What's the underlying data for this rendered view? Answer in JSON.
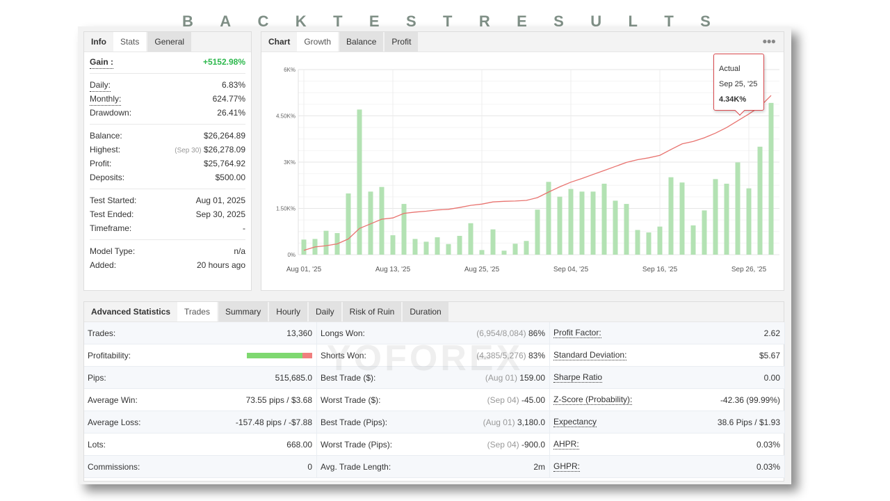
{
  "page_title_letters": [
    "B",
    "A",
    "C",
    "K",
    "T",
    "E",
    "S",
    "T",
    "R",
    "E",
    "S",
    "U",
    "L",
    "T",
    "S"
  ],
  "watermark": "YOFOREX",
  "left_panel": {
    "tabs": [
      "Info",
      "Stats",
      "General"
    ],
    "gain": {
      "label": "Gain :",
      "value": "+5152.98%"
    },
    "groups": [
      [
        {
          "label": "Daily:",
          "value": "6.83%",
          "dotted": true
        },
        {
          "label": "Monthly:",
          "value": "624.77%",
          "dotted": true
        },
        {
          "label": "Drawdown:",
          "value": "26.41%"
        }
      ],
      [
        {
          "label": "Balance:",
          "value": "$26,264.89"
        },
        {
          "label": "Highest:",
          "note": "(Sep 30)",
          "value": "$26,278.09"
        },
        {
          "label": "Profit:",
          "value": "$25,764.92",
          "green": true
        },
        {
          "label": "Deposits:",
          "value": "$500.00"
        }
      ],
      [
        {
          "label": "Test Started:",
          "value": "Aug 01, 2025"
        },
        {
          "label": "Test Ended:",
          "value": "Sep 30, 2025"
        },
        {
          "label": "Timeframe:",
          "value": "-"
        }
      ],
      [
        {
          "label": "Model Type:",
          "value": "n/a"
        },
        {
          "label": "Added:",
          "value": "20 hours ago"
        }
      ]
    ]
  },
  "chart_panel": {
    "tabs": [
      "Chart",
      "Growth",
      "Balance",
      "Profit"
    ],
    "more_icon": "ellipsis-icon",
    "tooltip": {
      "series": "Actual",
      "date": "Sep 25, '25",
      "value": "4.34K%"
    }
  },
  "chart_data": {
    "type": "bar",
    "ylim": [
      0,
      6000
    ],
    "ytick_labels": [
      "0%",
      "1.50K%",
      "3K%",
      "4.50K%",
      "6K%"
    ],
    "ytick_values": [
      0,
      1500,
      3000,
      4500,
      6000
    ],
    "xticks": [
      {
        "label": "Aug 01, '25",
        "index": 0
      },
      {
        "label": "Aug 13, '25",
        "index": 8
      },
      {
        "label": "Aug 25, '25",
        "index": 16
      },
      {
        "label": "Sep 04, '25",
        "index": 24
      },
      {
        "label": "Sep 16, '25",
        "index": 32
      },
      {
        "label": "Sep 26, '25",
        "index": 40
      }
    ],
    "grid": true,
    "bar_color": "#b3e2b3",
    "line_color": "#e8736f",
    "bars": [
      490,
      510,
      775,
      700,
      1985,
      4705,
      2045,
      2195,
      630,
      1645,
      510,
      420,
      565,
      345,
      610,
      1020,
      150,
      820,
      130,
      355,
      445,
      1460,
      2360,
      1880,
      2130,
      2045,
      2045,
      2300,
      1750,
      1645,
      800,
      720,
      910,
      2510,
      2340,
      950,
      1435,
      2450,
      2300,
      2990,
      2150,
      3500,
      4920
    ],
    "line": [
      140,
      250,
      290,
      350,
      510,
      850,
      1000,
      1150,
      1190,
      1340,
      1380,
      1410,
      1450,
      1470,
      1530,
      1600,
      1640,
      1710,
      1730,
      1740,
      1760,
      1850,
      2030,
      2200,
      2350,
      2470,
      2600,
      2730,
      2860,
      2990,
      3080,
      3140,
      3220,
      3410,
      3590,
      3670,
      3790,
      3940,
      4120,
      4340,
      4560,
      4800,
      5160
    ]
  },
  "bottom_panel": {
    "tabs": [
      "Advanced Statistics",
      "Trades",
      "Summary",
      "Hourly",
      "Daily",
      "Risk of Ruin",
      "Duration"
    ],
    "profitability": {
      "win_fraction": 0.85,
      "win_color": "#7ed870",
      "loss_color": "#f07e7e"
    },
    "columns": [
      [
        {
          "label": "Trades:",
          "value": "13,360"
        },
        {
          "label": "Profitability:",
          "value": ""
        },
        {
          "label": "Pips:",
          "value": "515,685.0"
        },
        {
          "label": "Average Win:",
          "value": "73.55 pips / $3.68"
        },
        {
          "label": "Average Loss:",
          "value": "-157.48 pips / -$7.88"
        },
        {
          "label": "Lots:",
          "value": "668.00"
        },
        {
          "label": "Commissions:",
          "value": "0"
        }
      ],
      [
        {
          "label": "Longs Won:",
          "note": "(6,954/8,084)",
          "value": "86%"
        },
        {
          "label": "Shorts Won:",
          "note": "(4,385/5,276)",
          "value": "83%"
        },
        {
          "label": "Best Trade ($):",
          "note": "(Aug 01)",
          "value": "159.00"
        },
        {
          "label": "Worst Trade ($):",
          "note": "(Sep 04)",
          "value": "-45.00"
        },
        {
          "label": "Best Trade (Pips):",
          "note": "(Aug 01)",
          "value": "3,180.0"
        },
        {
          "label": "Worst Trade (Pips):",
          "note": "(Sep 04)",
          "value": "-900.0"
        },
        {
          "label": "Avg. Trade Length:",
          "value": "2m"
        }
      ],
      [
        {
          "label": "Profit Factor:",
          "value": "2.62"
        },
        {
          "label": "Standard Deviation:",
          "value": "$5.67"
        },
        {
          "label": "Sharpe Ratio",
          "value": "0.00"
        },
        {
          "label": "Z-Score (Probability):",
          "value": "-42.36 (99.99%)"
        },
        {
          "label": "Expectancy",
          "value": "38.6 Pips / $1.93"
        },
        {
          "label": "AHPR:",
          "value": "0.03%"
        },
        {
          "label": "GHPR:",
          "value": "0.03%"
        }
      ]
    ]
  }
}
